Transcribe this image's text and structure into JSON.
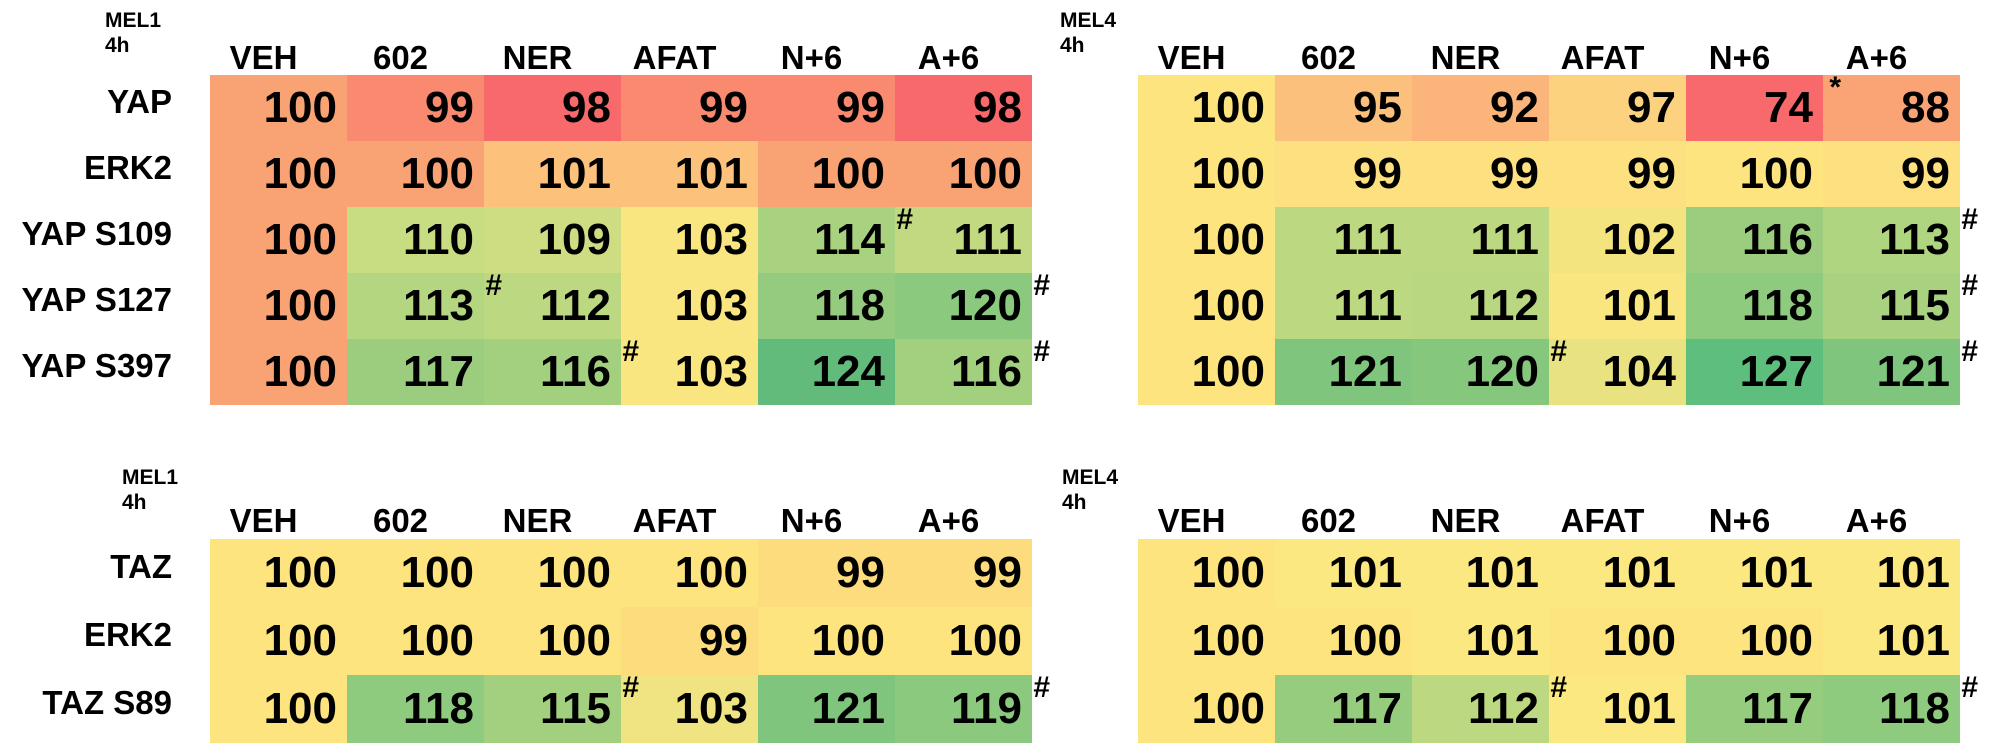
{
  "palette": {
    "min": "#5dbe7e",
    "mid": "#fde880",
    "low_mid": "#fbb57b",
    "max": "#f8696b"
  },
  "chart_data": [
    {
      "type": "heatmap",
      "label_line1": "MEL1",
      "label_line2": "4h",
      "columns": [
        "VEH",
        "602",
        "NER",
        "AFAT",
        "N+6",
        "A+6"
      ],
      "rows": [
        {
          "name": "YAP",
          "values": [
            100,
            99,
            98,
            99,
            99,
            98
          ],
          "marks": [
            "",
            "",
            "",
            "",
            "",
            ""
          ]
        },
        {
          "name": "ERK2",
          "values": [
            100,
            100,
            101,
            101,
            100,
            100
          ],
          "marks": [
            "",
            "",
            "",
            "",
            "",
            ""
          ]
        },
        {
          "name": "YAP S109",
          "values": [
            100,
            110,
            109,
            103,
            114,
            111
          ],
          "marks": [
            "",
            "",
            "",
            "",
            "#",
            ""
          ]
        },
        {
          "name": "YAP S127",
          "values": [
            100,
            113,
            112,
            103,
            118,
            120
          ],
          "marks": [
            "",
            "#",
            "",
            "",
            "#",
            "#"
          ]
        },
        {
          "name": "YAP S397",
          "values": [
            100,
            117,
            116,
            103,
            124,
            116
          ],
          "marks": [
            "",
            "#",
            "#",
            "",
            "#",
            "#"
          ]
        }
      ],
      "cell_colors": [
        [
          "#f9a274",
          "#f98a6f",
          "#f8696b",
          "#f98a6f",
          "#f98a6f",
          "#f8696b"
        ],
        [
          "#f9a274",
          "#f9a274",
          "#fcc27c",
          "#fcc27c",
          "#f9a274",
          "#f9a274"
        ],
        [
          "#f9a274",
          "#c8dc81",
          "#cfdd82",
          "#f9e680",
          "#a8d27f",
          "#c1da81"
        ],
        [
          "#f9a274",
          "#b5d680",
          "#bcd881",
          "#f9e680",
          "#94cb7e",
          "#8ac97e"
        ],
        [
          "#f9a274",
          "#9ccd7f",
          "#a3d07f",
          "#f9e680",
          "#62bb7b",
          "#a3d07f"
        ]
      ]
    },
    {
      "type": "heatmap",
      "label_line1": "MEL4",
      "label_line2": "4h",
      "columns": [
        "VEH",
        "602",
        "NER",
        "AFAT",
        "N+6",
        "A+6"
      ],
      "rows": [
        {
          "name": "",
          "values": [
            100,
            95,
            92,
            97,
            74,
            88
          ],
          "marks": [
            "",
            "",
            "",
            "",
            "*",
            ""
          ]
        },
        {
          "name": "",
          "values": [
            100,
            99,
            99,
            99,
            100,
            99
          ],
          "marks": [
            "",
            "",
            "",
            "",
            "",
            ""
          ]
        },
        {
          "name": "",
          "values": [
            100,
            111,
            111,
            102,
            116,
            113
          ],
          "marks": [
            "",
            "",
            "",
            "",
            "#",
            "#"
          ]
        },
        {
          "name": "",
          "values": [
            100,
            111,
            112,
            101,
            118,
            115
          ],
          "marks": [
            "",
            "",
            "",
            "",
            "#",
            "#"
          ]
        },
        {
          "name": "",
          "values": [
            100,
            121,
            120,
            104,
            127,
            121
          ],
          "marks": [
            "",
            "#",
            "#",
            "",
            "#",
            "#"
          ]
        }
      ],
      "cell_colors": [
        [
          "#fde47f",
          "#fbc07c",
          "#fbb57b",
          "#fcd27e",
          "#f8696b",
          "#faa475"
        ],
        [
          "#fde47f",
          "#fde07f",
          "#fde07f",
          "#fde07f",
          "#fde47f",
          "#fde07f"
        ],
        [
          "#fde47f",
          "#bcd881",
          "#bcd881",
          "#f3e480",
          "#9ccd7f",
          "#b0d580"
        ],
        [
          "#fde47f",
          "#bcd881",
          "#b8d780",
          "#f9e680",
          "#8fcb7e",
          "#a8d27f"
        ],
        [
          "#fde47f",
          "#80c57d",
          "#85c77d",
          "#e8e281",
          "#5dbe7e",
          "#80c57d"
        ]
      ]
    },
    {
      "type": "heatmap",
      "label_line1": "MEL1",
      "label_line2": "4h",
      "columns": [
        "VEH",
        "602",
        "NER",
        "AFAT",
        "N+6",
        "A+6"
      ],
      "rows": [
        {
          "name": "TAZ",
          "values": [
            100,
            100,
            100,
            100,
            99,
            99
          ],
          "marks": [
            "",
            "",
            "",
            "",
            "",
            ""
          ]
        },
        {
          "name": "ERK2",
          "values": [
            100,
            100,
            100,
            99,
            100,
            100
          ],
          "marks": [
            "",
            "",
            "",
            "",
            "",
            ""
          ]
        },
        {
          "name": "TAZ S89",
          "values": [
            100,
            118,
            115,
            103,
            121,
            119
          ],
          "marks": [
            "",
            "#",
            "#",
            "",
            "#",
            "#"
          ]
        }
      ],
      "cell_colors": [
        [
          "#fde47f",
          "#fde47f",
          "#fde47f",
          "#fde47f",
          "#fddc7e",
          "#fddc7e"
        ],
        [
          "#fde47f",
          "#fde47f",
          "#fde47f",
          "#fddc7e",
          "#fde47f",
          "#fde47f"
        ],
        [
          "#fde47f",
          "#8fcb7e",
          "#a3d07f",
          "#f0e381",
          "#80c57d",
          "#8ac97e"
        ]
      ]
    },
    {
      "type": "heatmap",
      "label_line1": "MEL4",
      "label_line2": "4h",
      "columns": [
        "VEH",
        "602",
        "NER",
        "AFAT",
        "N+6",
        "A+6"
      ],
      "rows": [
        {
          "name": "",
          "values": [
            100,
            101,
            101,
            101,
            101,
            101
          ],
          "marks": [
            "",
            "",
            "",
            "",
            "",
            ""
          ]
        },
        {
          "name": "",
          "values": [
            100,
            100,
            101,
            100,
            100,
            101
          ],
          "marks": [
            "",
            "",
            "",
            "",
            "",
            ""
          ]
        },
        {
          "name": "",
          "values": [
            100,
            117,
            112,
            101,
            117,
            118
          ],
          "marks": [
            "",
            "#",
            "#",
            "",
            "#",
            "#"
          ]
        }
      ],
      "cell_colors": [
        [
          "#fde47f",
          "#fce880",
          "#fce880",
          "#fce880",
          "#fce880",
          "#fce880"
        ],
        [
          "#fde47f",
          "#fde47f",
          "#fce880",
          "#fde47f",
          "#fde47f",
          "#fce880"
        ],
        [
          "#fde47f",
          "#96cc7e",
          "#bcd881",
          "#fce880",
          "#96cc7e",
          "#8fcb7e"
        ]
      ]
    }
  ]
}
